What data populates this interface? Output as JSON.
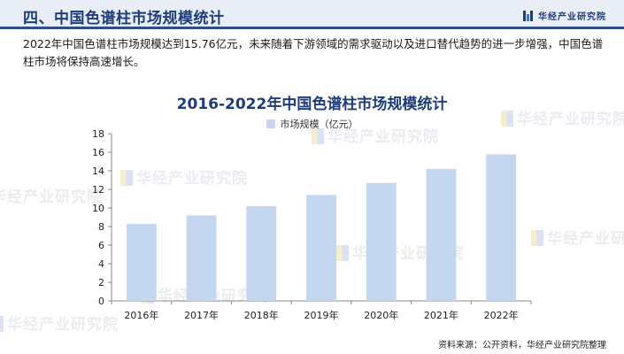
{
  "header": {
    "title": "四、中国色谱柱市场规模统计",
    "brand": "华经产业研究院",
    "accent_color": "#1f3c7a"
  },
  "intro": "2022年中国色谱柱市场规模达到15.76亿元，未来随着下游领域的需求驱动以及进口替代趋势的进一步增强，中国色谱柱市场将保持高速增长。",
  "watermark_text": "华经产业研究院",
  "chart_data": {
    "type": "bar",
    "title": "2016-2022年中国色谱柱市场规模统计",
    "categories": [
      "2016年",
      "2017年",
      "2018年",
      "2019年",
      "2020年",
      "2021年",
      "2022年"
    ],
    "series": [
      {
        "name": "市场规模（亿元）",
        "values": [
          8.3,
          9.2,
          10.2,
          11.4,
          12.7,
          14.2,
          15.76
        ],
        "color": "#c5d6f1"
      }
    ],
    "ylim": [
      0,
      18
    ],
    "yticks": [
      0,
      2,
      4,
      6,
      8,
      10,
      12,
      14,
      16,
      18
    ],
    "grid": false,
    "legend": "top-center"
  },
  "source": "资料来源：公开资料，华经产业研究院整理"
}
